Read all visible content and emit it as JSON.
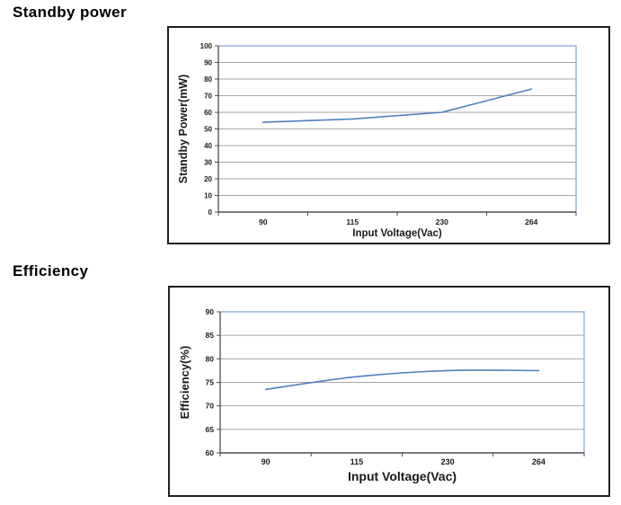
{
  "page": {
    "background": "#ffffff"
  },
  "sections": [
    {
      "heading": "Standby power"
    },
    {
      "heading": "Efficiency"
    }
  ],
  "colors": {
    "line": "#4f81bd",
    "plot_border": "#95b3d7",
    "gridline": "#a6a6a6",
    "axis": "#4d4d4d",
    "text": "#1a1a1a",
    "frame_border": "#1f1f1f"
  },
  "chart_data": [
    {
      "type": "line",
      "title": "Standby power",
      "categories": [
        "90",
        "115",
        "230",
        "264"
      ],
      "series": [
        {
          "name": "Standby Power",
          "values": [
            54,
            56,
            60,
            74
          ]
        }
      ],
      "xlabel": "Input Voltage(Vac)",
      "ylabel": "Standby Power(mW)",
      "ylim": [
        0,
        100
      ],
      "ytick_step": 10,
      "yticks": [
        0,
        10,
        20,
        30,
        40,
        50,
        60,
        70,
        80,
        90,
        100
      ],
      "grid": true,
      "legend": "none",
      "line_color": "#4f81bd",
      "smooth": false
    },
    {
      "type": "line",
      "title": "Efficiency",
      "categories": [
        "90",
        "115",
        "230",
        "264"
      ],
      "series": [
        {
          "name": "Efficiency",
          "values": [
            73.5,
            76.2,
            77.5,
            77.5
          ]
        }
      ],
      "xlabel": "Input Voltage(Vac)",
      "ylabel": "Efficiency(%)",
      "ylim": [
        60,
        90
      ],
      "ytick_step": 5,
      "yticks": [
        60,
        65,
        70,
        75,
        80,
        85,
        90
      ],
      "grid": true,
      "legend": "none",
      "line_color": "#4f81bd",
      "smooth": true
    }
  ]
}
